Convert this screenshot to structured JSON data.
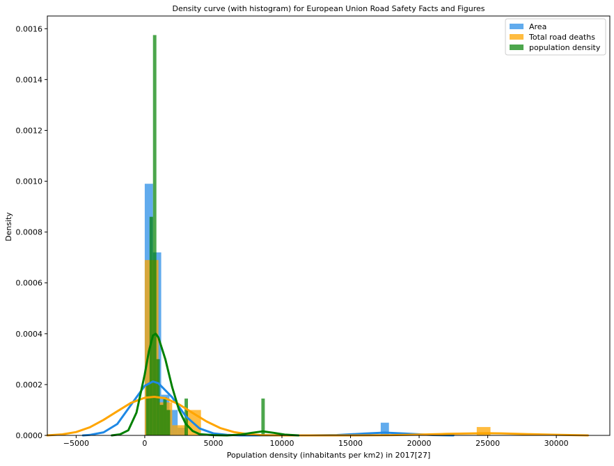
{
  "chart_data": {
    "type": "histogram",
    "title": "Density curve (with histogram) for European Union Road Safety Facts and Figures",
    "xlabel": "Population density (inhabitants per km2) in 2017[27]",
    "ylabel": "Density",
    "xlim": [
      -7100,
      33900
    ],
    "ylim": [
      0,
      0.00165
    ],
    "x_ticks": [
      -5000,
      0,
      5000,
      10000,
      15000,
      20000,
      25000,
      30000
    ],
    "x_tick_labels": [
      "−5000",
      "0",
      "5000",
      "10000",
      "15000",
      "20000",
      "25000",
      "30000"
    ],
    "y_ticks": [
      0,
      0.0002,
      0.0004,
      0.0006,
      0.0008,
      0.001,
      0.0012,
      0.0014,
      0.0016
    ],
    "y_tick_labels": [
      "0.0000",
      "0.0002",
      "0.0004",
      "0.0006",
      "0.0008",
      "0.0010",
      "0.0012",
      "0.0014",
      "0.0016"
    ],
    "grid": false,
    "legend_position": "top-right",
    "series": [
      {
        "name": "Area",
        "color": "#1E88E5",
        "bar_alpha": 0.7,
        "bars": [
          {
            "x0": 0,
            "x1": 600,
            "value": 0.00099
          },
          {
            "x0": 600,
            "x1": 1200,
            "value": 0.00072
          },
          {
            "x0": 1200,
            "x1": 1800,
            "value": 0.00016
          },
          {
            "x0": 1800,
            "x1": 2400,
            "value": 0.0001
          },
          {
            "x0": 2400,
            "x1": 3000,
            "value": 3e-05
          },
          {
            "x0": 17200,
            "x1": 17800,
            "value": 5e-05
          }
        ],
        "curve": [
          [
            -4500,
            0.0
          ],
          [
            -4000,
            2e-06
          ],
          [
            -3000,
            1.2e-05
          ],
          [
            -2000,
            4.5e-05
          ],
          [
            -1000,
            0.00012
          ],
          [
            0,
            0.000195
          ],
          [
            600,
            0.000212
          ],
          [
            1000,
            0.000205
          ],
          [
            2000,
            0.00015
          ],
          [
            3000,
            7.5e-05
          ],
          [
            4000,
            2.7e-05
          ],
          [
            5000,
            8e-06
          ],
          [
            6000,
            2e-06
          ],
          [
            7000,
            0.0
          ],
          [
            10000,
            0.0
          ],
          [
            12000,
            0.0
          ],
          [
            14000,
            1.5e-06
          ],
          [
            16000,
            7e-06
          ],
          [
            17500,
            1.1e-05
          ],
          [
            19000,
            7e-06
          ],
          [
            21000,
            1.5e-06
          ],
          [
            22500,
            0.0
          ]
        ]
      },
      {
        "name": "Total road deaths",
        "color": "#FFA500",
        "bar_alpha": 0.75,
        "bars": [
          {
            "x0": 0,
            "x1": 1000,
            "value": 0.00069
          },
          {
            "x0": 1000,
            "x1": 2000,
            "value": 0.00013
          },
          {
            "x0": 2000,
            "x1": 3000,
            "value": 4e-05
          },
          {
            "x0": 3000,
            "x1": 4100,
            "value": 0.0001
          },
          {
            "x0": 24200,
            "x1": 25200,
            "value": 3.3e-05
          }
        ],
        "curve": [
          [
            -7100,
            0.0
          ],
          [
            -6000,
            4e-06
          ],
          [
            -5000,
            1.3e-05
          ],
          [
            -4000,
            3.2e-05
          ],
          [
            -3000,
            6.1e-05
          ],
          [
            -2000,
            9.5e-05
          ],
          [
            -1000,
            0.000128
          ],
          [
            0,
            0.000148
          ],
          [
            700,
            0.000152
          ],
          [
            1500,
            0.000146
          ],
          [
            2500,
            0.000122
          ],
          [
            3500,
            8.8e-05
          ],
          [
            4500,
            5.5e-05
          ],
          [
            5500,
            2.9e-05
          ],
          [
            6500,
            1.3e-05
          ],
          [
            7500,
            5e-06
          ],
          [
            8500,
            1e-06
          ],
          [
            10000,
            0.0
          ],
          [
            15000,
            0.0
          ],
          [
            18000,
            1e-06
          ],
          [
            20000,
            3e-06
          ],
          [
            22000,
            6e-06
          ],
          [
            24000,
            8e-06
          ],
          [
            25000,
            8.5e-06
          ],
          [
            26000,
            8e-06
          ],
          [
            28000,
            5e-06
          ],
          [
            30000,
            2.5e-06
          ],
          [
            32300,
            0.0
          ]
        ]
      },
      {
        "name": "population density",
        "color": "#008000",
        "bar_alpha": 0.7,
        "bars": [
          {
            "x0": 100,
            "x1": 350,
            "value": 0.0002
          },
          {
            "x0": 350,
            "x1": 600,
            "value": 0.00086
          },
          {
            "x0": 600,
            "x1": 850,
            "value": 0.001575
          },
          {
            "x0": 850,
            "x1": 1100,
            "value": 0.0003
          },
          {
            "x0": 1100,
            "x1": 1350,
            "value": 0.00012
          },
          {
            "x0": 1350,
            "x1": 1600,
            "value": 0.00015
          },
          {
            "x0": 1600,
            "x1": 1850,
            "value": 0.0001
          },
          {
            "x0": 2900,
            "x1": 3150,
            "value": 0.000145
          },
          {
            "x0": 8500,
            "x1": 8750,
            "value": 0.000145
          }
        ],
        "curve": [
          [
            -2400,
            0.0
          ],
          [
            -1800,
            4e-06
          ],
          [
            -1200,
            2e-05
          ],
          [
            -600,
            9e-05
          ],
          [
            0,
            0.00024
          ],
          [
            300,
            0.00033
          ],
          [
            600,
            0.000393
          ],
          [
            800,
            0.0004
          ],
          [
            1000,
            0.000385
          ],
          [
            1500,
            0.0003
          ],
          [
            2000,
            0.00019
          ],
          [
            2500,
            0.0001
          ],
          [
            3000,
            4.5e-05
          ],
          [
            3500,
            1.7e-05
          ],
          [
            4000,
            5e-06
          ],
          [
            5000,
            1e-06
          ],
          [
            6000,
            0.0
          ],
          [
            7000,
            3e-06
          ],
          [
            7800,
            1e-05
          ],
          [
            8600,
            1.6e-05
          ],
          [
            9400,
            1e-05
          ],
          [
            10200,
            3e-06
          ],
          [
            11200,
            0.0
          ]
        ]
      }
    ]
  }
}
